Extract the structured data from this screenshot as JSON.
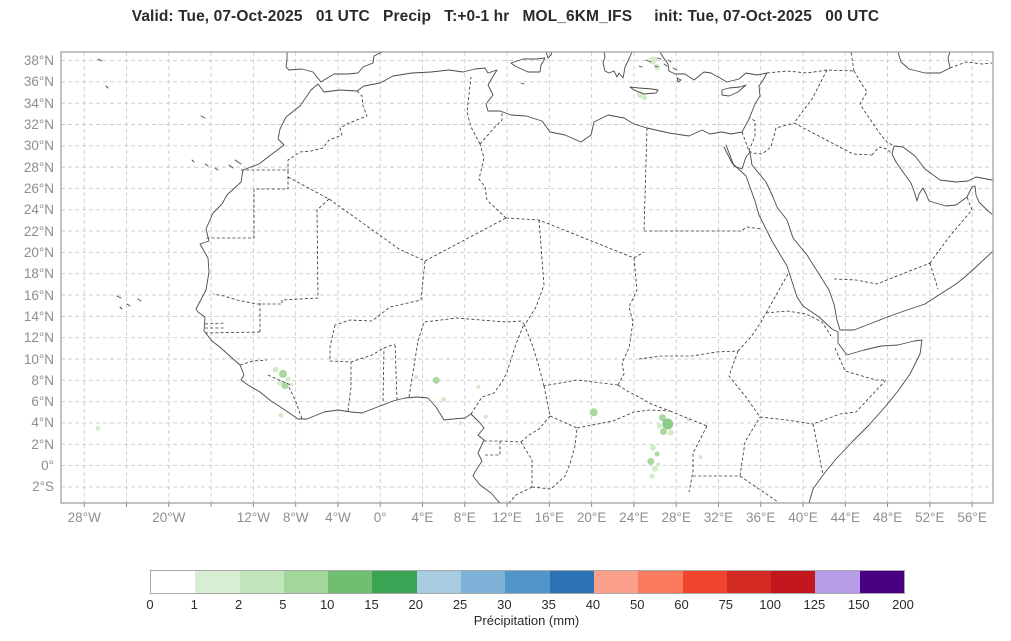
{
  "title": "Valid: Tue, 07-Oct-2025   01 UTC   Precip   T:+0-1 hr   MOL_6KM_IFS     init: Tue, 07-Oct-2025   00 UTC",
  "map": {
    "lat_ticks": [
      {
        "v": 38,
        "label": "38°N"
      },
      {
        "v": 36,
        "label": "36°N"
      },
      {
        "v": 34,
        "label": "34°N"
      },
      {
        "v": 32,
        "label": "32°N"
      },
      {
        "v": 30,
        "label": "30°N"
      },
      {
        "v": 28,
        "label": "28°N"
      },
      {
        "v": 26,
        "label": "26°N"
      },
      {
        "v": 24,
        "label": "24°N"
      },
      {
        "v": 22,
        "label": "22°N"
      },
      {
        "v": 20,
        "label": "20°N"
      },
      {
        "v": 18,
        "label": "18°N"
      },
      {
        "v": 16,
        "label": "16°N"
      },
      {
        "v": 14,
        "label": "14°N"
      },
      {
        "v": 12,
        "label": "12°N"
      },
      {
        "v": 10,
        "label": "10°N"
      },
      {
        "v": 8,
        "label": "8°N"
      },
      {
        "v": 6,
        "label": "6°N"
      },
      {
        "v": 4,
        "label": "4°N"
      },
      {
        "v": 2,
        "label": "2°N"
      },
      {
        "v": 0,
        "label": "0°"
      },
      {
        "v": -2,
        "label": "2°S"
      }
    ],
    "lon_ticks": [
      {
        "v": -28,
        "label": "28°W"
      },
      {
        "v": -20,
        "label": "20°W"
      },
      {
        "v": -12,
        "label": "12°W"
      },
      {
        "v": -8,
        "label": "8°W"
      },
      {
        "v": -4,
        "label": "4°W"
      },
      {
        "v": 0,
        "label": "0°"
      },
      {
        "v": 4,
        "label": "4°E"
      },
      {
        "v": 8,
        "label": "8°E"
      },
      {
        "v": 12,
        "label": "12°E"
      },
      {
        "v": 16,
        "label": "16°E"
      },
      {
        "v": 20,
        "label": "20°E"
      },
      {
        "v": 24,
        "label": "24°E"
      },
      {
        "v": 28,
        "label": "28°E"
      },
      {
        "v": 32,
        "label": "32°E"
      },
      {
        "v": 36,
        "label": "36°E"
      },
      {
        "v": 40,
        "label": "40°E"
      },
      {
        "v": 44,
        "label": "44°E"
      },
      {
        "v": 48,
        "label": "48°E"
      },
      {
        "v": 52,
        "label": "52°E"
      },
      {
        "v": 56,
        "label": "56°E"
      }
    ],
    "grid": {
      "lon_start": -28,
      "lon_end": 56,
      "lon_step": 4,
      "lat_start": 38,
      "lat_end": -2,
      "lat_step": 2
    }
  },
  "colorbar": {
    "label": "Précipitation (mm)",
    "ticks": [
      "0",
      "1",
      "2",
      "5",
      "10",
      "15",
      "20",
      "25",
      "30",
      "35",
      "40",
      "50",
      "60",
      "75",
      "100",
      "125",
      "150",
      "200"
    ],
    "colors": [
      "#ffffff",
      "#d8eed3",
      "#c3e5bc",
      "#a3d69b",
      "#6fbe71",
      "#3aa455",
      "#a8cce0",
      "#7fb2d9",
      "#5195c9",
      "#2c72b4",
      "#fba08a",
      "#fb7b5f",
      "#f0442f",
      "#d42a24",
      "#c2181d",
      "#b79ce8",
      "#4a0082"
    ]
  },
  "precip_palette": [
    "#d2ecca",
    "#abd8a1",
    "#8ccc8a"
  ],
  "precip_cells": [
    {
      "lon": -26.7,
      "lat": 3.5,
      "r": 2.5,
      "c": 0
    },
    {
      "lon": -9.9,
      "lat": 9.0,
      "r": 3,
      "c": 0
    },
    {
      "lon": -9.2,
      "lat": 8.6,
      "r": 4,
      "c": 1
    },
    {
      "lon": -9.5,
      "lat": 7.8,
      "r": 3,
      "c": 0
    },
    {
      "lon": -8.7,
      "lat": 8.1,
      "r": 2.5,
      "c": 0
    },
    {
      "lon": -9.0,
      "lat": 7.5,
      "r": 3.5,
      "c": 1
    },
    {
      "lon": -8.4,
      "lat": 7.6,
      "r": 2,
      "c": 0
    },
    {
      "lon": -9.4,
      "lat": 4.7,
      "r": 2.5,
      "c": 0
    },
    {
      "lon": 3.4,
      "lat": 8.3,
      "r": 2,
      "c": 0
    },
    {
      "lon": 5.3,
      "lat": 8.0,
      "r": 3.5,
      "c": 1
    },
    {
      "lon": 6.0,
      "lat": 6.2,
      "r": 2.5,
      "c": 0
    },
    {
      "lon": 9.3,
      "lat": 7.4,
      "r": 2,
      "c": 0
    },
    {
      "lon": 10.0,
      "lat": 4.6,
      "r": 2,
      "c": 0
    },
    {
      "lon": 7.6,
      "lat": 4.0,
      "r": 1.8,
      "c": 0
    },
    {
      "lon": 20.2,
      "lat": 5.0,
      "r": 4,
      "c": 1
    },
    {
      "lon": 26.7,
      "lat": 4.5,
      "r": 3.5,
      "c": 1
    },
    {
      "lon": 27.2,
      "lat": 3.9,
      "r": 5.5,
      "c": 2
    },
    {
      "lon": 26.8,
      "lat": 3.2,
      "r": 3.5,
      "c": 1
    },
    {
      "lon": 27.5,
      "lat": 3.1,
      "r": 3,
      "c": 0
    },
    {
      "lon": 26.4,
      "lat": 3.7,
      "r": 2.5,
      "c": 0
    },
    {
      "lon": 29.2,
      "lat": 4.3,
      "r": 2,
      "c": 0
    },
    {
      "lon": 25.8,
      "lat": 1.7,
      "r": 3,
      "c": 0
    },
    {
      "lon": 26.2,
      "lat": 1.1,
      "r": 2.5,
      "c": 1
    },
    {
      "lon": 25.6,
      "lat": 0.4,
      "r": 3.5,
      "c": 1
    },
    {
      "lon": 26.0,
      "lat": -0.3,
      "r": 3,
      "c": 0
    },
    {
      "lon": 25.7,
      "lat": -1.0,
      "r": 2.5,
      "c": 0
    },
    {
      "lon": 26.3,
      "lat": 0.1,
      "r": 2,
      "c": 0
    },
    {
      "lon": 30.3,
      "lat": 0.8,
      "r": 2,
      "c": 0
    },
    {
      "lon": 25.8,
      "lat": 38.0,
      "r": 4,
      "c": 0
    },
    {
      "lon": 26.2,
      "lat": 37.4,
      "r": 3,
      "c": 0
    },
    {
      "lon": 24.6,
      "lat": 34.8,
      "r": 3.5,
      "c": 0
    },
    {
      "lon": 25.0,
      "lat": 34.5,
      "r": 2.5,
      "c": 0
    }
  ]
}
